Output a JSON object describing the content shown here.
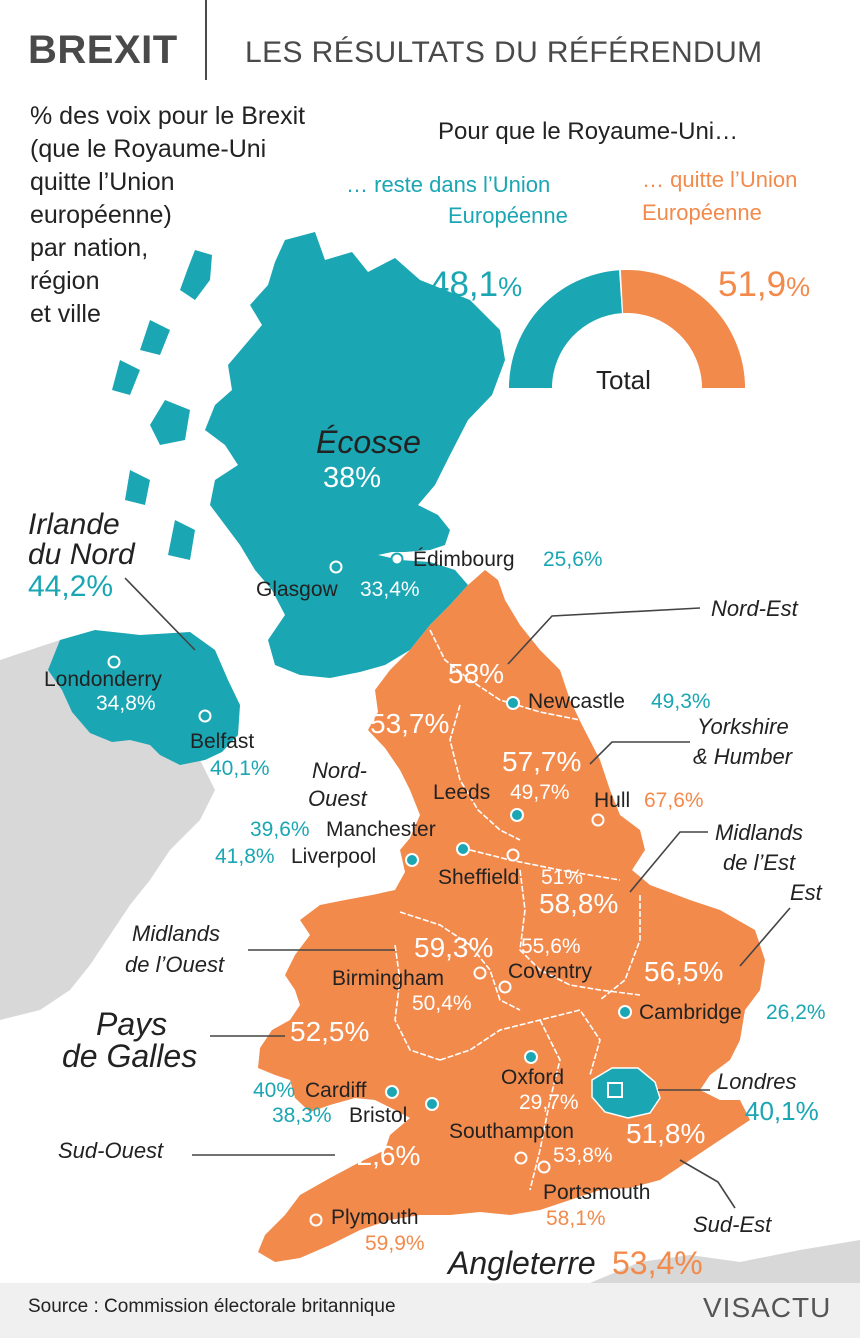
{
  "header": {
    "title": "BREXIT",
    "subtitle": "LES RÉSULTATS DU RÉFÉRENDUM"
  },
  "intro": "% des voix pour le Brexit\n(que le Royaume-Uni\nquitte l’Union\neuropéenne)\npar nation,\nrégion\net ville",
  "total_block": {
    "heading": "Pour que le Royaume-Uni…",
    "remain_label_1": "… reste dans l’Union",
    "remain_label_2": "Européenne",
    "leave_label_1": "… quitte l’Union",
    "leave_label_2": "Européenne",
    "remain_value": "48,1",
    "leave_value": "51,9",
    "percent_sign": "%",
    "total_label": "Total",
    "remain_fraction": 0.481,
    "leave_fraction": 0.519
  },
  "colors": {
    "remain": "#1aa6b3",
    "leave": "#f28a4c",
    "land_other": "#d8d8d8",
    "text": "#222222"
  },
  "nations": {
    "ecosse": {
      "name": "Écosse",
      "value": "38%"
    },
    "irlande": {
      "name_1": "Irlande",
      "name_2": "du Nord",
      "value": "44,2%"
    },
    "pays_de_galles": {
      "name_1": "Pays",
      "name_2": "de Galles",
      "value": "52,5%"
    },
    "angleterre": {
      "name": "Angleterre",
      "value": "53,4%"
    }
  },
  "regions": {
    "nord_est": {
      "name": "Nord-Est",
      "value": "58%"
    },
    "nord_ouest": {
      "name_1": "Nord-",
      "name_2": "Ouest",
      "value": "53,7%"
    },
    "yorkshire": {
      "name_1": "Yorkshire",
      "name_2": "& Humber",
      "value": "57,7%"
    },
    "midlands_est": {
      "name_1": "Midlands",
      "name_2": "de l’Est",
      "value": "58,8%"
    },
    "midlands_ouest": {
      "name_1": "Midlands",
      "name_2": "de l’Ouest",
      "value": "59,3%"
    },
    "est": {
      "name": "Est",
      "value": "56,5%"
    },
    "londres": {
      "name": "Londres",
      "value": "40,1%"
    },
    "sud_ouest": {
      "name": "Sud-Ouest",
      "value": "52,6%"
    },
    "sud_est": {
      "name": "Sud-Est",
      "value": "51,8%"
    }
  },
  "cities": {
    "edimbourg": {
      "name": "Édimbourg",
      "value": "25,6%"
    },
    "glasgow": {
      "name": "Glasgow",
      "value": "33,4%"
    },
    "londonderry": {
      "name": "Londonderry",
      "value": "34,8%"
    },
    "belfast": {
      "name": "Belfast",
      "value": "40,1%"
    },
    "newcastle": {
      "name": "Newcastle",
      "value": "49,3%"
    },
    "leeds": {
      "name": "Leeds",
      "value": "49,7%"
    },
    "hull": {
      "name": "Hull",
      "value": "67,6%"
    },
    "manchester": {
      "name": "Manchester",
      "value": "39,6%"
    },
    "liverpool": {
      "name": "Liverpool",
      "value": "41,8%"
    },
    "sheffield": {
      "name": "Sheffield",
      "value": "51%"
    },
    "coventry": {
      "name": "Coventry",
      "value": "55,6%"
    },
    "birmingham": {
      "name": "Birmingham",
      "value": "50,4%"
    },
    "cambridge": {
      "name": "Cambridge",
      "value": "26,2%"
    },
    "oxford": {
      "name": "Oxford",
      "value": "29,7%"
    },
    "cardiff": {
      "name": "Cardiff",
      "value": "40%"
    },
    "bristol": {
      "name": "Bristol",
      "value": "38,3%"
    },
    "southampton": {
      "name": "Southampton",
      "value": "53,8%"
    },
    "portsmouth": {
      "name": "Portsmouth",
      "value": "58,1%"
    },
    "plymouth": {
      "name": "Plymouth",
      "value": "59,9%"
    }
  },
  "footer": {
    "source": "Source : Commission électorale britannique",
    "logo": "VISACTU"
  }
}
